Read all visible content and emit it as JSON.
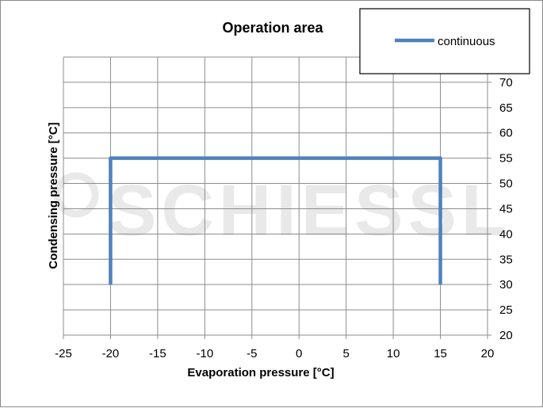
{
  "chart_data": {
    "type": "line",
    "title": "Operation area",
    "xlabel": "Evaporation pressure [°C]",
    "ylabel": "Condensing pressure [°C]",
    "xlim": [
      -25,
      20
    ],
    "ylim": [
      20,
      75
    ],
    "x_ticks": [
      -25,
      -20,
      -15,
      -10,
      -5,
      0,
      5,
      10,
      15,
      20
    ],
    "y_tick_labels": [
      20,
      25,
      30,
      35,
      40,
      45,
      50,
      55,
      60,
      65,
      70
    ],
    "y_axis_side": "right",
    "grid": true,
    "legend_position": "top-right",
    "series": [
      {
        "name": "continuous",
        "color": "#4f81bd",
        "points": [
          {
            "x": -20,
            "y": 30
          },
          {
            "x": -20,
            "y": 55
          },
          {
            "x": 15,
            "y": 55
          },
          {
            "x": 15,
            "y": 30
          }
        ]
      }
    ],
    "watermark": "SCHIESSL"
  }
}
